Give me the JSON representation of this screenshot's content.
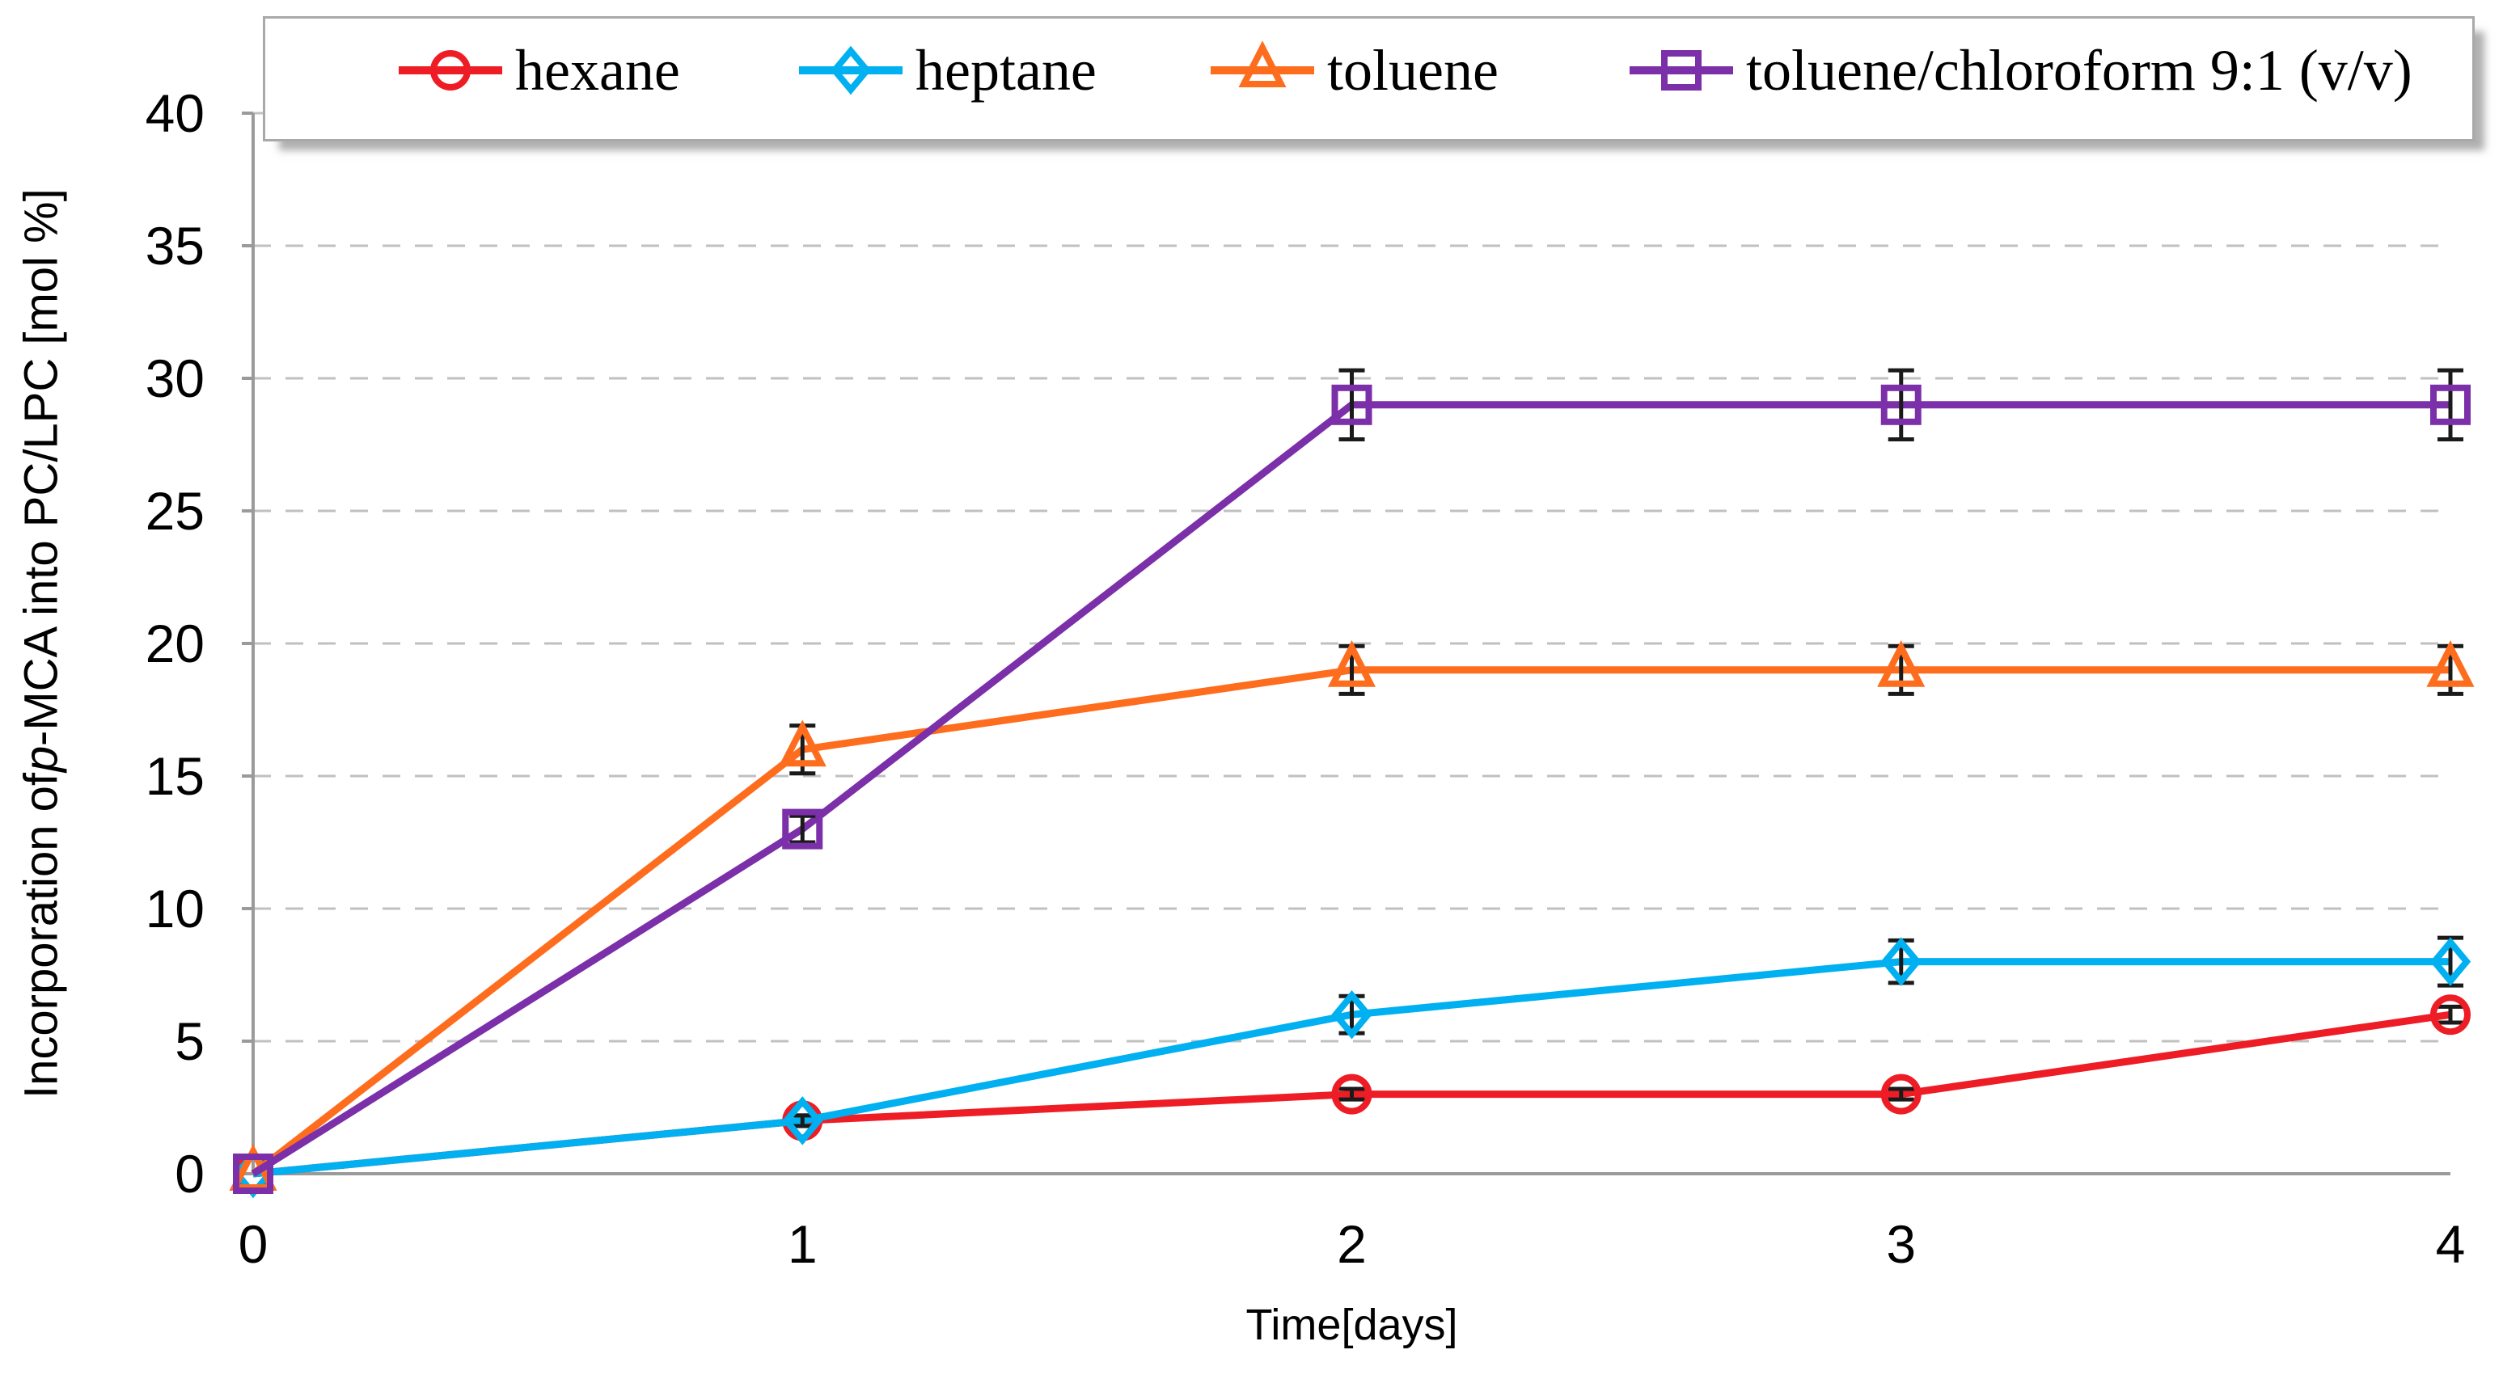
{
  "chart_data": {
    "type": "line",
    "title": "",
    "xlabel": "Time[days]",
    "ylabel": "Incorporation of p-MCA into PC/LPC [mol %]",
    "ylabel_parts": {
      "prefix": "Incorporation of ",
      "italic": "p",
      "suffix": "-MCA into PC/LPC [mol %]"
    },
    "x": [
      0,
      1,
      2,
      3,
      4
    ],
    "xticks": [
      "0",
      "1",
      "2",
      "3",
      "4"
    ],
    "yticks": [
      "0",
      "5",
      "10",
      "15",
      "20",
      "25",
      "30",
      "35",
      "40"
    ],
    "ytick_values": [
      0,
      5,
      10,
      15,
      20,
      25,
      30,
      35,
      40
    ],
    "xlim": [
      0,
      4
    ],
    "ylim": [
      0,
      40
    ],
    "grid": "horizontal-dashed",
    "legend_position": "top",
    "series": [
      {
        "name": "hexane",
        "color": "#ee1c25",
        "marker": "circle",
        "values": [
          0,
          2,
          3,
          3,
          6
        ],
        "errors": [
          0,
          0.2,
          0.2,
          0.2,
          0.3
        ]
      },
      {
        "name": "heptane",
        "color": "#00b0f0",
        "marker": "diamond",
        "values": [
          0,
          2,
          6,
          8,
          8
        ],
        "errors": [
          0,
          0.2,
          0.7,
          0.8,
          0.9
        ]
      },
      {
        "name": "toluene",
        "color": "#fd6d1d",
        "marker": "triangle",
        "values": [
          0,
          16,
          19,
          19,
          19
        ],
        "errors": [
          0,
          0.9,
          0.9,
          0.9,
          0.9
        ]
      },
      {
        "name": "toluene/chloroform 9:1 (v/v)",
        "color": "#7b2fa8",
        "marker": "square",
        "values": [
          0,
          13,
          29,
          29,
          29
        ],
        "errors": [
          0,
          0.5,
          1.3,
          1.3,
          1.3
        ]
      }
    ]
  },
  "colors": {
    "axis": "#9a9a9a",
    "gridline": "#c0c0c0",
    "error_bar": "#1a1a1a",
    "tick_text": "#000000",
    "legend_border": "#a9a9a9",
    "background": "#ffffff"
  }
}
